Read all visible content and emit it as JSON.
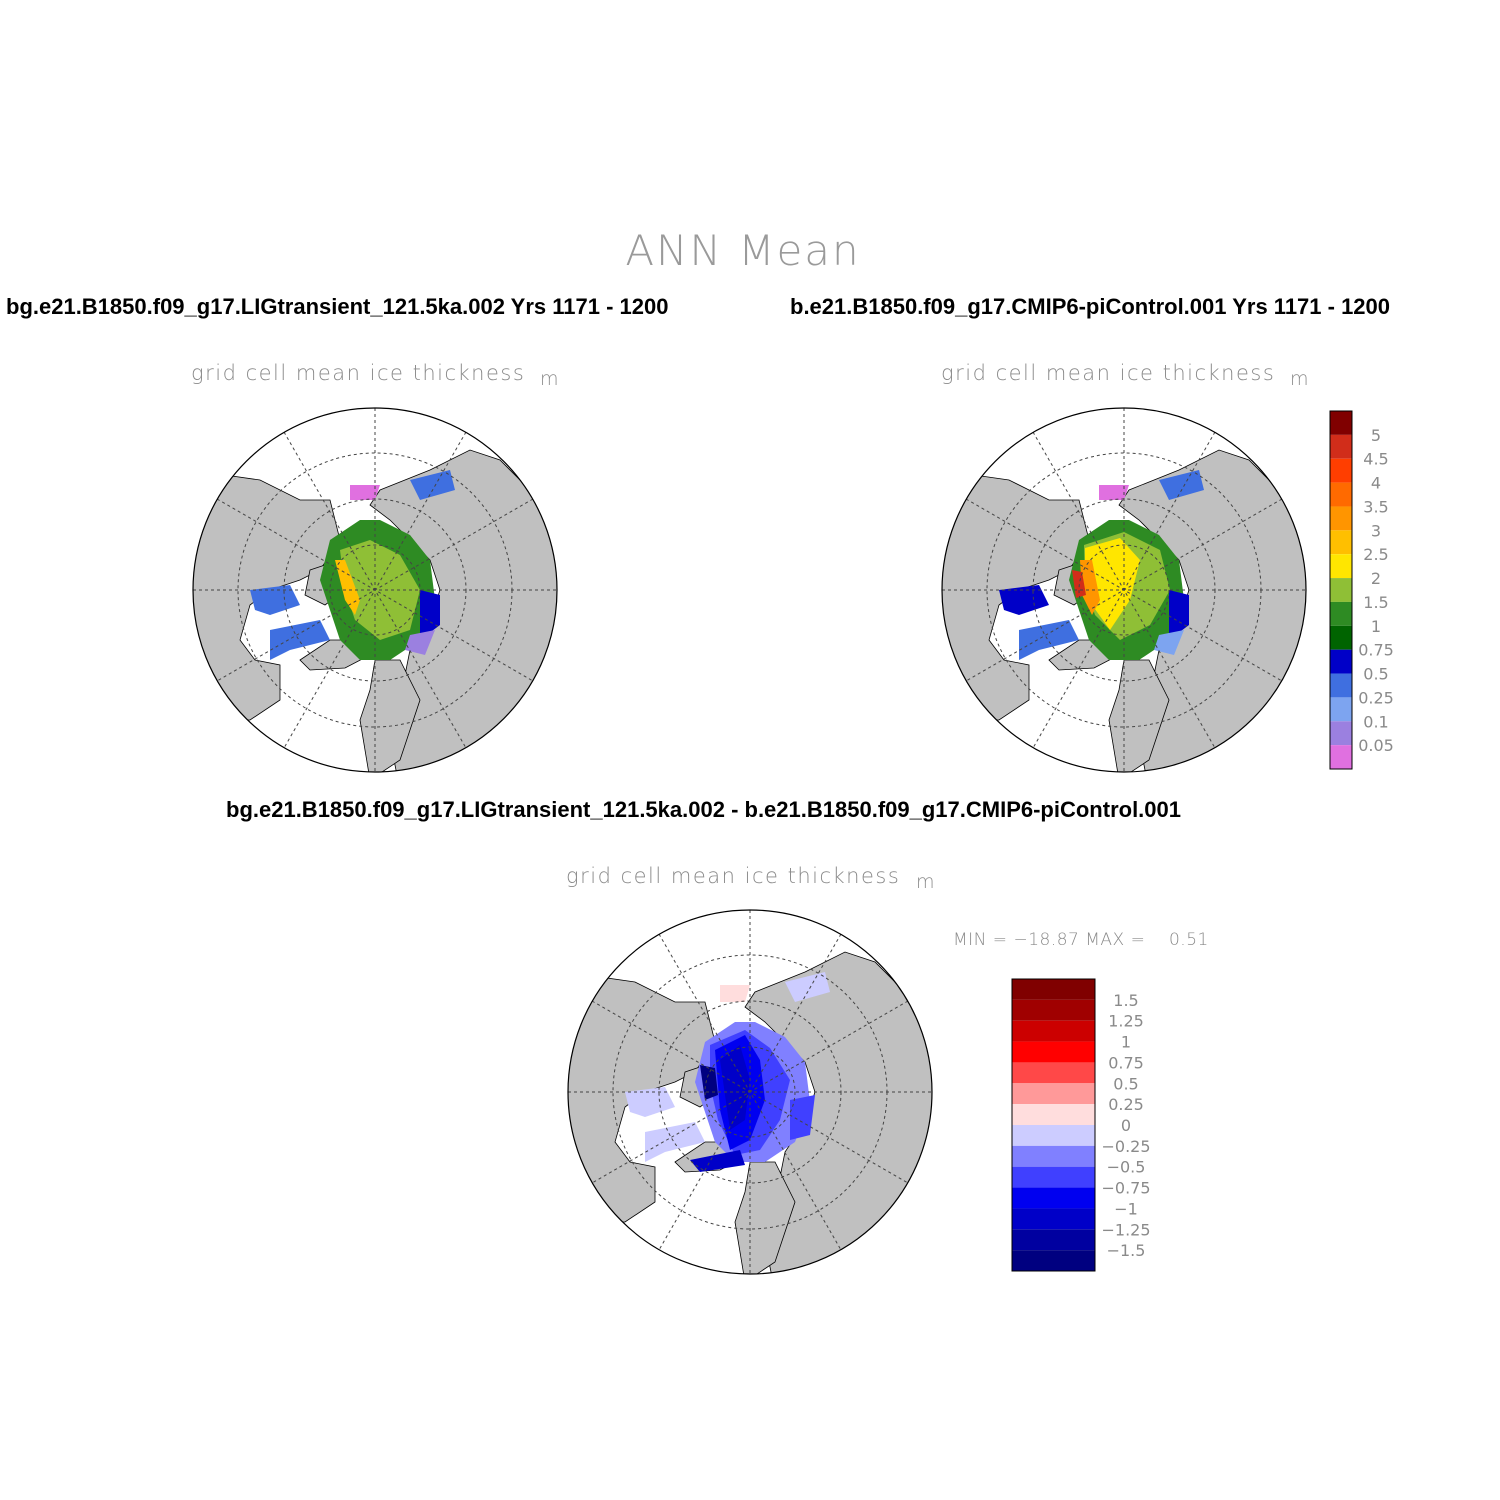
{
  "title": "ANN Mean",
  "panels": [
    {
      "case": "bg.e21.B1850.f09_g17.LIGtransient_121.5ka.002  Yrs 1171 - 1200",
      "variable": "grid cell mean ice thickness",
      "units": "m"
    },
    {
      "case": "b.e21.B1850.f09_g17.CMIP6-piControl.001  Yrs 1171 - 1200",
      "variable": "grid cell mean ice thickness",
      "units": "m"
    },
    {
      "case": "bg.e21.B1850.f09_g17.LIGtransient_121.5ka.002 - b.e21.B1850.f09_g17.CMIP6-piControl.001",
      "variable": "grid cell mean ice thickness",
      "units": "m",
      "minmax": "MIN = −18.87 MAX =    0.51"
    }
  ],
  "colorbar_abs": {
    "labels": [
      "5",
      "4.5",
      "4",
      "3.5",
      "3",
      "2.5",
      "2",
      "1.5",
      "1",
      "0.75",
      "0.5",
      "0.25",
      "0.1",
      "0.05"
    ],
    "colors": [
      "#800000",
      "#d12d1a",
      "#ff3e00",
      "#ff6a00",
      "#ff9500",
      "#ffbf00",
      "#ffe600",
      "#8fbf36",
      "#2e8b23",
      "#006400",
      "#0000c8",
      "#3f6fe0",
      "#7da4f0",
      "#9b80e0",
      "#e070e0"
    ]
  },
  "colorbar_diff": {
    "labels": [
      "1.5",
      "1.25",
      "1",
      "0.75",
      "0.5",
      "0.25",
      "0",
      "−0.25",
      "−0.5",
      "−0.75",
      "−1",
      "−1.25",
      "−1.5"
    ],
    "colors": [
      "#800000",
      "#a00000",
      "#cc0000",
      "#ff0000",
      "#ff4848",
      "#ff9999",
      "#ffdddd",
      "#ccccff",
      "#8080ff",
      "#4040ff",
      "#0000f0",
      "#0000c8",
      "#0000a0",
      "#000080"
    ]
  },
  "map_colors": {
    "land": "#c0c0c0",
    "ocean": "#ffffff",
    "grid": "#444444"
  }
}
